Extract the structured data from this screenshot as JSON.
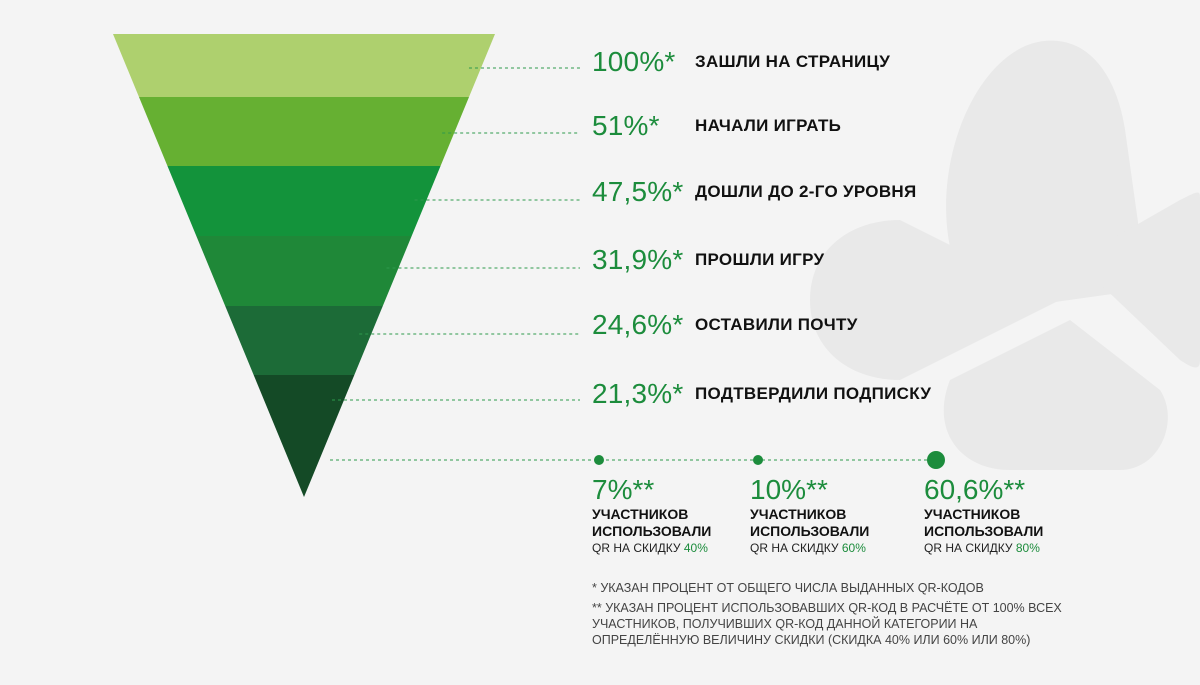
{
  "chart_data": {
    "type": "funnel",
    "stages": [
      {
        "value": "100%*",
        "label": "ЗАШЛИ НА СТРАНИЦУ",
        "color": "#aed06e"
      },
      {
        "value": "51%*",
        "label": "НАЧАЛИ ИГРАТЬ",
        "color": "#66b032"
      },
      {
        "value": "47,5%*",
        "label": "ДОШЛИ ДО 2-ГО УРОВНЯ",
        "color": "#13933b"
      },
      {
        "value": "31,9%*",
        "label": "ПРОШЛИ ИГРУ",
        "color": "#1f8838"
      },
      {
        "value": "24,6%*",
        "label": "ОСТАВИЛИ ПОЧТУ",
        "color": "#1c6b37"
      },
      {
        "value": "21,3%*",
        "label": "ПОДТВЕРДИЛИ ПОДПИСКУ",
        "color": "#144a26"
      }
    ],
    "qr_usage": [
      {
        "value": "7%**",
        "line1": "УЧАСТНИКОВ",
        "line2": "ИСПОЛЬЗОВАЛИ",
        "discount_label": "QR НА СКИДКУ",
        "discount_value": "40%"
      },
      {
        "value": "10%**",
        "line1": "УЧАСТНИКОВ",
        "line2": "ИСПОЛЬЗОВАЛИ",
        "discount_label": "QR НА СКИДКУ",
        "discount_value": "60%"
      },
      {
        "value": "60,6%**",
        "line1": "УЧАСТНИКОВ",
        "line2": "ИСПОЛЬЗОВАЛИ",
        "discount_label": "QR НА СКИДКУ",
        "discount_value": "80%"
      }
    ]
  },
  "footnotes": {
    "single": "* УКАЗАН ПРОЦЕНТ ОТ ОБЩЕГО ЧИСЛА ВЫДАННЫХ QR-КОДОВ",
    "double": "** УКАЗАН ПРОЦЕНТ ИСПОЛЬЗОВАВШИХ QR-КОД В РАСЧЁТЕ ОТ 100% ВСЕХ УЧАСТНИКОВ, ПОЛУЧИВШИХ QR-КОД ДАННОЙ КАТЕГОРИИ НА ОПРЕДЕЛЁННУЮ ВЕЛИЧИНУ СКИДКИ (СКИДКА 40% ИЛИ 60% ИЛИ 80%)"
  },
  "colors": {
    "accent": "#1c8c3c",
    "dashed_line": "#2e9a4c",
    "background": "#f4f4f4",
    "watermark": "#e8e8e8"
  },
  "icons": {
    "watermark": "clover-logo-icon"
  }
}
